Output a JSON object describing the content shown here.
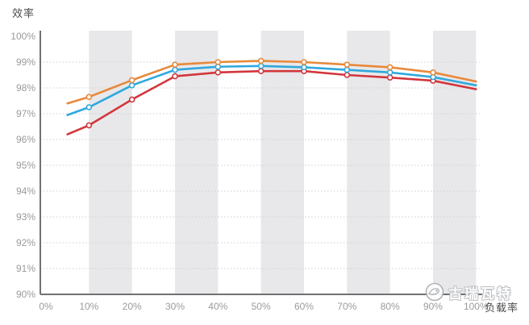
{
  "chart_data": {
    "type": "line",
    "title": "",
    "ylabel": "效率",
    "xlabel": "负载率",
    "x": [
      5,
      10,
      20,
      30,
      40,
      50,
      60,
      70,
      80,
      90,
      100
    ],
    "series": [
      {
        "name": "red-curve",
        "color": "#d2363c",
        "values": [
          96.2,
          96.55,
          97.55,
          98.45,
          98.6,
          98.65,
          98.65,
          98.5,
          98.4,
          98.28,
          97.95
        ]
      },
      {
        "name": "blue-curve",
        "color": "#30a8dd",
        "values": [
          96.95,
          97.25,
          98.1,
          98.7,
          98.82,
          98.85,
          98.8,
          98.7,
          98.6,
          98.42,
          98.1
        ]
      },
      {
        "name": "orange-curve",
        "color": "#e8893b",
        "values": [
          97.4,
          97.65,
          98.3,
          98.9,
          99.0,
          99.05,
          99.0,
          98.9,
          98.8,
          98.6,
          98.25
        ]
      }
    ],
    "marker_x": [
      10,
      20,
      30,
      40,
      50,
      60,
      70,
      80,
      90
    ],
    "xlim": [
      0,
      100
    ],
    "ylim": [
      90,
      100
    ],
    "x_tick_labels": [
      "0%",
      "10%",
      "20%",
      "30%",
      "40%",
      "50%",
      "60%",
      "70%",
      "80%",
      "90%",
      "100%"
    ],
    "y_tick_labels": [
      "100%",
      "99%",
      "98%",
      "97%",
      "96%",
      "95%",
      "94%",
      "93%",
      "92%",
      "91%",
      "90%"
    ],
    "y_ticks": [
      100,
      99,
      98,
      97,
      96,
      95,
      94,
      93,
      92,
      91,
      90
    ],
    "x_ticks": [
      0,
      10,
      20,
      30,
      40,
      50,
      60,
      70,
      80,
      90,
      100
    ],
    "grid": "horizontal-dotted",
    "legend": "none",
    "bands": [
      [
        10,
        20
      ],
      [
        30,
        40
      ],
      [
        50,
        60
      ],
      [
        70,
        80
      ],
      [
        90,
        100
      ]
    ],
    "style": {
      "band_color": "#e8e8ea",
      "grid_color": "#cfcfcf",
      "axis_color": "#717171",
      "tick_label_color": "#9b9b9b",
      "marker_fill": "#ffffff"
    }
  },
  "watermark": {
    "text": "古瑞瓦特",
    "logo": "growatt-logo-icon"
  }
}
